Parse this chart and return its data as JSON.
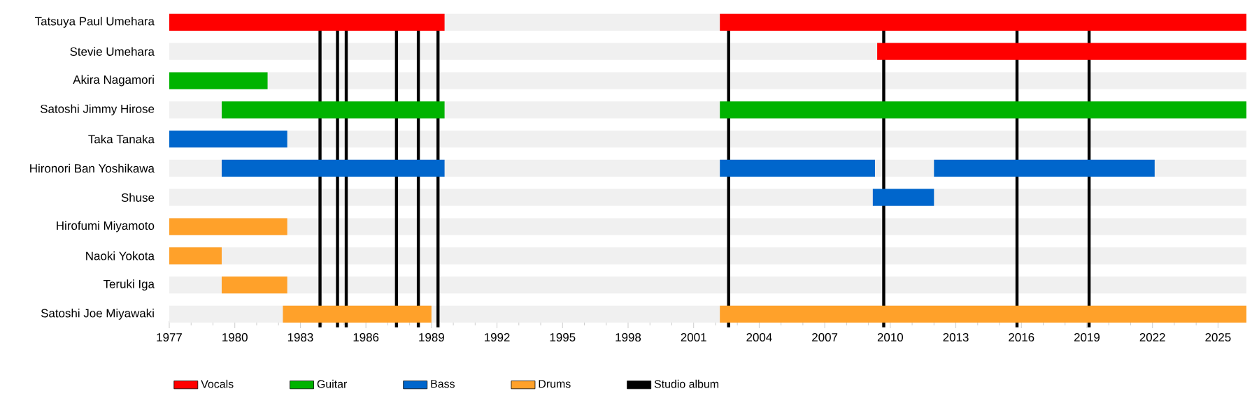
{
  "chart_data": {
    "type": "bar",
    "orientation": "horizontal",
    "categories": [
      "Tatsuya Paul Umehara",
      "Stevie Umehara",
      "Akira Nagamori",
      "Satoshi Jimmy Hirose",
      "Taka Tanaka",
      "Hironori Ban Yoshikawa",
      "Shuse",
      "Hirofumi Miyamoto",
      "Naoki Yokota",
      "Teruki Iga",
      "Satoshi Joe Miyawaki"
    ],
    "series": [
      {
        "name": "Vocals",
        "color": "#ff0000",
        "base": [
          1977,
          null,
          null,
          null,
          null,
          null,
          null,
          null,
          null,
          null,
          null
        ],
        "values": [
          12.6,
          null,
          null,
          null,
          null,
          null,
          null,
          null,
          null,
          null,
          null
        ]
      },
      {
        "color": "#ff0000",
        "base": [
          2002.2,
          2009.4,
          null,
          null,
          null,
          null,
          null,
          null,
          null,
          null,
          null
        ],
        "values": [
          24.1,
          16.9,
          null,
          null,
          null,
          null,
          null,
          null,
          null,
          null,
          null
        ]
      },
      {
        "name": "Guitar",
        "color": "#00b300",
        "base": [
          null,
          null,
          1977,
          1979.4,
          null,
          null,
          null,
          null,
          null,
          null,
          null
        ],
        "values": [
          null,
          null,
          4.5,
          10.2,
          null,
          null,
          null,
          null,
          null,
          null,
          null
        ]
      },
      {
        "color": "#00b300",
        "base": [
          null,
          null,
          null,
          2002.2,
          null,
          null,
          null,
          null,
          null,
          null,
          null
        ],
        "values": [
          null,
          null,
          null,
          24.1,
          null,
          null,
          null,
          null,
          null,
          null,
          null
        ]
      },
      {
        "name": "Bass",
        "color": "#0066cc",
        "base": [
          null,
          null,
          null,
          null,
          1977,
          1979.4,
          null,
          null,
          null,
          null,
          null
        ],
        "values": [
          null,
          null,
          null,
          null,
          5.4,
          10.2,
          null,
          null,
          null,
          null,
          null
        ]
      },
      {
        "color": "#0066cc",
        "base": [
          null,
          null,
          null,
          null,
          null,
          2002.2,
          2009.2,
          null,
          null,
          null,
          null
        ],
        "values": [
          null,
          null,
          null,
          null,
          null,
          7.1,
          2.8,
          null,
          null,
          null,
          null
        ]
      },
      {
        "color": "#0066cc",
        "base": [
          null,
          null,
          null,
          null,
          null,
          2012.0,
          null,
          null,
          null,
          null,
          null
        ],
        "values": [
          null,
          null,
          null,
          null,
          null,
          10.1,
          null,
          null,
          null,
          null,
          null
        ]
      },
      {
        "name": "Drums",
        "color": "#ffa12a",
        "base": [
          null,
          null,
          null,
          null,
          null,
          null,
          null,
          1977,
          1977,
          1979.4,
          1982.2
        ],
        "values": [
          null,
          null,
          null,
          null,
          null,
          null,
          null,
          5.4,
          2.4,
          3.0,
          6.8
        ]
      },
      {
        "color": "#ffa12a",
        "base": [
          null,
          null,
          null,
          null,
          null,
          null,
          null,
          null,
          null,
          null,
          2002.2
        ],
        "values": [
          null,
          null,
          null,
          null,
          null,
          null,
          null,
          null,
          null,
          null,
          24.1
        ]
      }
    ],
    "ref_lines": [
      {
        "axis": "x",
        "value": 1983.9,
        "color": "#000000",
        "label": "Studio album"
      },
      {
        "axis": "x",
        "value": 1984.7,
        "color": "#000000"
      },
      {
        "axis": "x",
        "value": 1985.1,
        "color": "#000000"
      },
      {
        "axis": "x",
        "value": 1987.4,
        "color": "#000000"
      },
      {
        "axis": "x",
        "value": 1988.4,
        "color": "#000000"
      },
      {
        "axis": "x",
        "value": 1989.3,
        "color": "#000000"
      },
      {
        "axis": "x",
        "value": 2002.6,
        "color": "#000000"
      },
      {
        "axis": "x",
        "value": 2009.7,
        "color": "#000000"
      },
      {
        "axis": "x",
        "value": 2015.8,
        "color": "#000000"
      },
      {
        "axis": "x",
        "value": 2019.1,
        "color": "#000000"
      }
    ],
    "xlim": [
      1977,
      2026.3
    ],
    "xticks": [
      1977,
      1980,
      1983,
      1986,
      1989,
      1992,
      1995,
      1998,
      2001,
      2004,
      2007,
      2010,
      2013,
      2016,
      2019,
      2022,
      2025
    ],
    "legend": "bottom"
  }
}
